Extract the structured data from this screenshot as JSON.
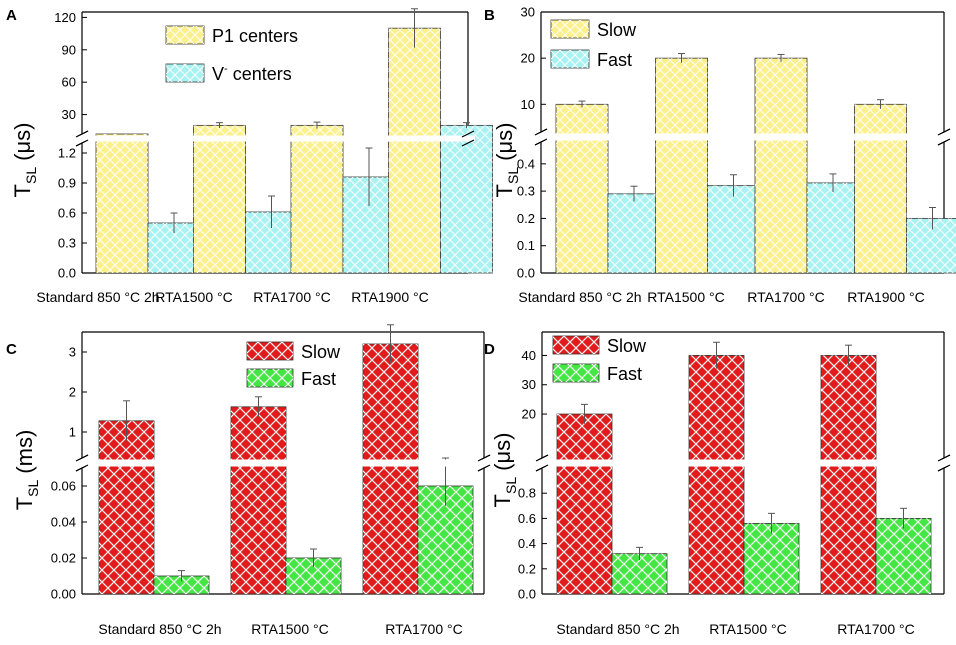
{
  "chart_data": [
    {
      "panel": "A",
      "type": "bar",
      "categories": [
        "Standard 850 °C 2h",
        "RTA1500 °C",
        "RTA1700 °C",
        "RTA1900 °C"
      ],
      "y_label_main": "T",
      "y_label_sub": "SL",
      "y_label_unit": "(μs)",
      "broken_axis": true,
      "lower_ylim": [
        0,
        1.3
      ],
      "lower_ticks": [
        "0.0",
        "0.3",
        "0.6",
        "0.9",
        "1.2"
      ],
      "upper_ylim": [
        12,
        125
      ],
      "upper_ticks": [
        "30",
        "60",
        "90",
        "120"
      ],
      "series": [
        {
          "name": "P1 centers",
          "values": [
            10,
            20,
            20,
            110
          ],
          "errors": [
            1.5,
            2.5,
            3,
            18
          ],
          "color": "#fbf08c"
        },
        {
          "name": "V⁻ centers",
          "values": [
            0.5,
            0.61,
            0.96,
            20
          ],
          "errors": [
            0.1,
            0.16,
            0.29,
            2.5
          ],
          "color": "#a9f2f2"
        }
      ],
      "legend": [
        {
          "label": "P1 centers"
        },
        {
          "label_main": "V",
          "label_sup": "-",
          "label_rest": " centers"
        }
      ],
      "legend_position": "top-left"
    },
    {
      "panel": "B",
      "type": "bar",
      "categories": [
        "Standard 850 °C 2h",
        "RTA1500 °C",
        "RTA1700 °C",
        "RTA1900 °C"
      ],
      "y_label_main": "T",
      "y_label_sub": "SL",
      "y_label_unit": "(μs)",
      "broken_axis": true,
      "lower_ylim": [
        0,
        0.48
      ],
      "lower_ticks": [
        "0.0",
        "0.1",
        "0.2",
        "0.3",
        "0.4"
      ],
      "upper_ylim": [
        4,
        30
      ],
      "upper_ticks": [
        "10",
        "20",
        "30"
      ],
      "series": [
        {
          "name": "Slow",
          "values": [
            10,
            20,
            20,
            10
          ],
          "errors": [
            0.7,
            1.0,
            0.8,
            1.0
          ],
          "color": "#fbf08c"
        },
        {
          "name": "Fast",
          "values": [
            0.29,
            0.32,
            0.33,
            0.2
          ],
          "errors": [
            0.028,
            0.04,
            0.033,
            0.04
          ],
          "color": "#a9f2f2"
        }
      ],
      "legend_position": "top-left"
    },
    {
      "panel": "C",
      "type": "bar",
      "categories": [
        "Standard 850 °C 2h",
        "RTA1500 °C",
        "RTA1700 °C"
      ],
      "y_label_main": "T",
      "y_label_sub": "SL",
      "y_label_unit": "(ms)",
      "broken_axis": true,
      "lower_ylim": [
        0,
        0.07
      ],
      "lower_ticks": [
        "0.00",
        "0.02",
        "0.04",
        "0.06"
      ],
      "upper_ylim": [
        0.35,
        3.5
      ],
      "upper_ticks": [
        "1",
        "2",
        "3"
      ],
      "series": [
        {
          "name": "Slow",
          "values": [
            1.28,
            1.63,
            3.2
          ],
          "errors": [
            0.5,
            0.25,
            0.48
          ],
          "color": "#e11b1b"
        },
        {
          "name": "Fast",
          "values": [
            0.01,
            0.02,
            0.06
          ],
          "errors": [
            0.003,
            0.005,
            0.011
          ],
          "color": "#44e644"
        }
      ],
      "legend_position": "top-center"
    },
    {
      "panel": "D",
      "type": "bar",
      "categories": [
        "Standard 850 °C 2h",
        "RTA1500 °C",
        "RTA1700 °C"
      ],
      "y_label_main": "T",
      "y_label_sub": "SL",
      "y_label_unit": "(μs)",
      "broken_axis": true,
      "lower_ylim": [
        0,
        1.0
      ],
      "lower_ticks": [
        "0.0",
        "0.2",
        "0.4",
        "0.6",
        "0.8"
      ],
      "upper_ylim": [
        5,
        48
      ],
      "upper_ticks": [
        "20",
        "30",
        "40"
      ],
      "series": [
        {
          "name": "Slow",
          "values": [
            20,
            40,
            40
          ],
          "errors": [
            3.3,
            4.5,
            3.5
          ],
          "color": "#e11b1b"
        },
        {
          "name": "Fast",
          "values": [
            0.32,
            0.56,
            0.6
          ],
          "errors": [
            0.05,
            0.08,
            0.08
          ],
          "color": "#44e644"
        }
      ],
      "legend_position": "top-left"
    }
  ]
}
